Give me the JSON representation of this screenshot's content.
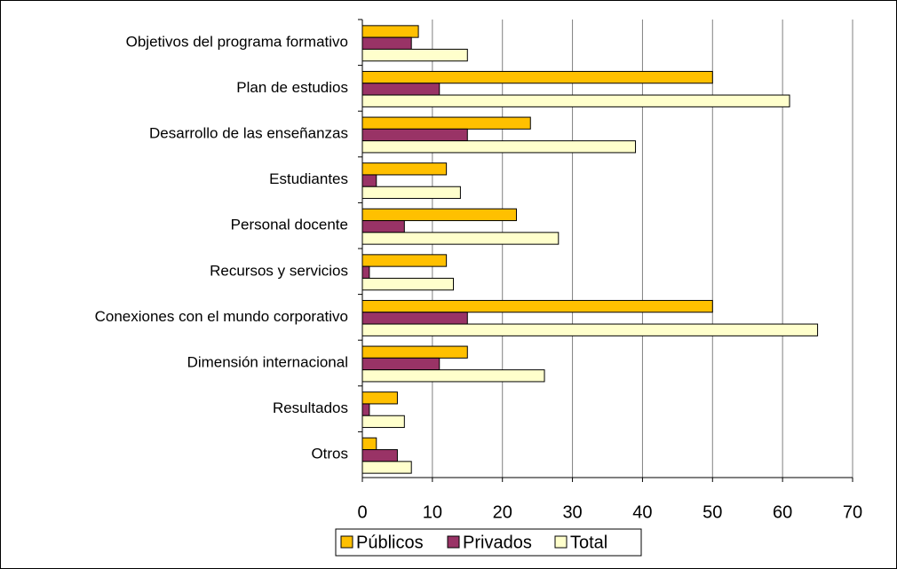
{
  "chart_data": {
    "type": "bar",
    "orientation": "horizontal",
    "categories": [
      "Objetivos del programa formativo",
      "Plan de estudios",
      "Desarrollo de las enseñanzas",
      "Estudiantes",
      "Personal docente",
      "Recursos y servicios",
      "Conexiones con el mundo corporativo",
      "Dimensión internacional",
      "Resultados",
      "Otros"
    ],
    "series": [
      {
        "name": "Públicos",
        "color": "#ffc000",
        "values": [
          8,
          50,
          24,
          12,
          22,
          12,
          50,
          15,
          5,
          2
        ]
      },
      {
        "name": "Privados",
        "color": "#993366",
        "values": [
          7,
          11,
          15,
          2,
          6,
          1,
          15,
          11,
          1,
          5
        ]
      },
      {
        "name": "Total",
        "color": "#ffffcc",
        "values": [
          15,
          61,
          39,
          14,
          28,
          13,
          65,
          26,
          6,
          7
        ]
      }
    ],
    "xlim": [
      0,
      70
    ],
    "xticks": [
      0,
      10,
      20,
      30,
      40,
      50,
      60,
      70
    ],
    "grid": true,
    "legend": "bottom"
  }
}
